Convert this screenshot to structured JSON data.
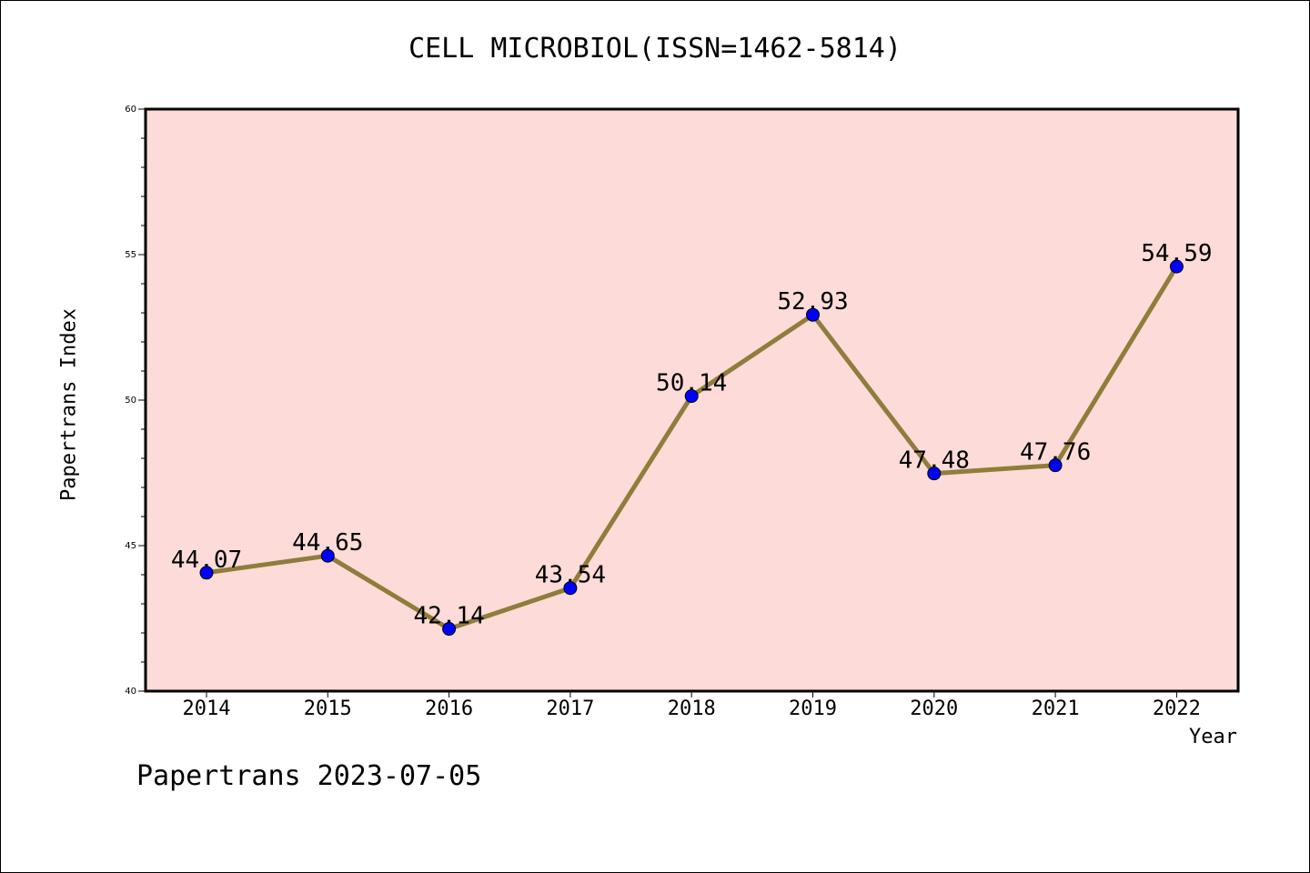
{
  "chart_data": {
    "type": "line",
    "title": "CELL MICROBIOL(ISSN=1462-5814)",
    "xlabel": "Year",
    "ylabel": "Papertrans Index",
    "categories": [
      "2014",
      "2015",
      "2016",
      "2017",
      "2018",
      "2019",
      "2020",
      "2021",
      "2022"
    ],
    "values": [
      44.07,
      44.65,
      42.14,
      43.54,
      50.14,
      52.93,
      47.48,
      47.76,
      54.59
    ],
    "data_labels": [
      "44.07",
      "44.65",
      "42.14",
      "43.54",
      "50.14",
      "52.93",
      "47.48",
      "47.76",
      "54.59"
    ],
    "ylim": [
      40,
      60
    ],
    "yticks": [
      40,
      45,
      50,
      55,
      60
    ],
    "ytick_labels": [
      "40",
      "45",
      "50",
      "55",
      "60"
    ],
    "grid": false,
    "colors": {
      "plot_background": "#fddbd8",
      "line": "#8f7d3b",
      "marker": "#0000ff",
      "axis": "#000000"
    }
  },
  "footer": "Papertrans 2023-07-05"
}
